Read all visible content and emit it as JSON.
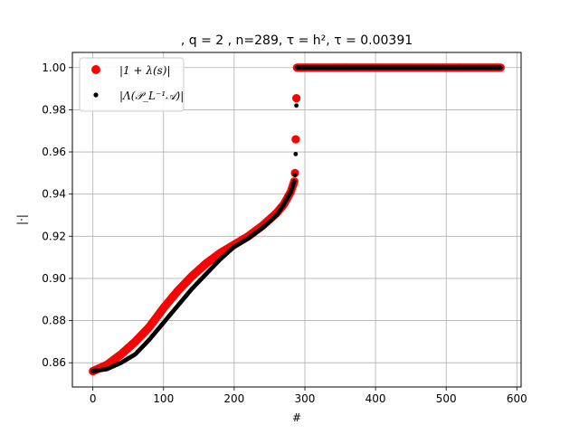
{
  "chart_data": {
    "type": "scatter",
    "title": ", q = 2 , n=289, τ = h², τ = 0.00391",
    "xlabel": "#",
    "ylabel": "|·|",
    "xlim": [
      -29,
      606
    ],
    "ylim": [
      0.8485,
      1.0072
    ],
    "xticks": [
      0,
      100,
      200,
      300,
      400,
      500,
      600
    ],
    "yticks": [
      0.86,
      0.88,
      0.9,
      0.92,
      0.94,
      0.96,
      0.98,
      1.0
    ],
    "xtick_labels": [
      "0",
      "100",
      "200",
      "300",
      "400",
      "500",
      "600"
    ],
    "ytick_labels": [
      "0.86",
      "0.88",
      "0.90",
      "0.92",
      "0.94",
      "0.96",
      "0.98",
      "1.00"
    ],
    "grid": true,
    "legend_position": "top-left",
    "series": [
      {
        "name": "|1 + λ(s)|",
        "color": "#ff0000",
        "marker_size": "large",
        "segments": [
          {
            "from_index": 0,
            "to_index": 288,
            "points": [
              [
                0,
                0.856
              ],
              [
                10,
                0.8575
              ],
              [
                20,
                0.859
              ],
              [
                40,
                0.864
              ],
              [
                60,
                0.87
              ],
              [
                80,
                0.877
              ],
              [
                100,
                0.886
              ],
              [
                120,
                0.894
              ],
              [
                140,
                0.901
              ],
              [
                160,
                0.907
              ],
              [
                180,
                0.912
              ],
              [
                200,
                0.916
              ],
              [
                220,
                0.92
              ],
              [
                240,
                0.925
              ],
              [
                260,
                0.931
              ],
              [
                270,
                0.935
              ],
              [
                280,
                0.941
              ],
              [
                285,
                0.946
              ],
              [
                286,
                0.95
              ]
            ]
          },
          {
            "index": 287,
            "value": 0.966
          },
          {
            "index": 288,
            "value": 0.9855
          },
          {
            "from_index": 289,
            "to_index": 577,
            "value": 1.0
          }
        ]
      },
      {
        "name": "|Λ(𝒫_L⁻¹𝒜)|",
        "color": "#000000",
        "marker_size": "small",
        "segments": [
          {
            "from_index": 0,
            "to_index": 288,
            "points": [
              [
                0,
                0.856
              ],
              [
                20,
                0.857
              ],
              [
                40,
                0.86
              ],
              [
                60,
                0.864
              ],
              [
                80,
                0.871
              ],
              [
                100,
                0.879
              ],
              [
                120,
                0.887
              ],
              [
                140,
                0.895
              ],
              [
                160,
                0.902
              ],
              [
                180,
                0.909
              ],
              [
                200,
                0.915
              ],
              [
                220,
                0.919
              ],
              [
                240,
                0.924
              ],
              [
                260,
                0.93
              ],
              [
                270,
                0.935
              ],
              [
                280,
                0.941
              ],
              [
                285,
                0.946
              ],
              [
                286,
                0.949
              ]
            ]
          },
          {
            "index": 287,
            "value": 0.959
          },
          {
            "index": 288,
            "value": 0.982
          },
          {
            "from_index": 289,
            "to_index": 577,
            "value": 1.0
          }
        ]
      }
    ]
  }
}
